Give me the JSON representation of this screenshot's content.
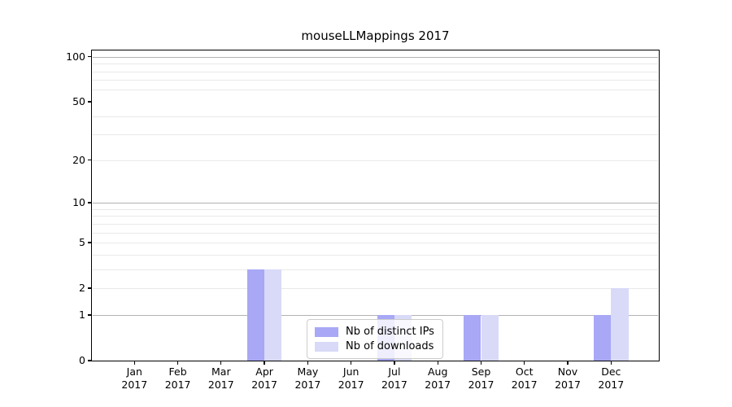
{
  "title": "mouseLLMappings 2017",
  "chart_data": {
    "type": "bar",
    "title": "mouseLLMappings 2017",
    "categories": [
      {
        "month": "Jan",
        "year": "2017"
      },
      {
        "month": "Feb",
        "year": "2017"
      },
      {
        "month": "Mar",
        "year": "2017"
      },
      {
        "month": "Apr",
        "year": "2017"
      },
      {
        "month": "May",
        "year": "2017"
      },
      {
        "month": "Jun",
        "year": "2017"
      },
      {
        "month": "Jul",
        "year": "2017"
      },
      {
        "month": "Aug",
        "year": "2017"
      },
      {
        "month": "Sep",
        "year": "2017"
      },
      {
        "month": "Oct",
        "year": "2017"
      },
      {
        "month": "Nov",
        "year": "2017"
      },
      {
        "month": "Dec",
        "year": "2017"
      }
    ],
    "series": [
      {
        "name": "Nb of distinct IPs",
        "color": "#a8a8f6",
        "values": [
          0,
          0,
          0,
          3,
          0,
          0,
          1,
          0,
          1,
          0,
          0,
          1
        ]
      },
      {
        "name": "Nb of downloads",
        "color": "#d9d9f8",
        "values": [
          0,
          0,
          0,
          3,
          0,
          0,
          1,
          0,
          1,
          0,
          0,
          2
        ]
      }
    ],
    "y_axis": {
      "scale": "log10(value+1)",
      "tick_values": [
        0,
        1,
        2,
        5,
        10,
        20,
        50,
        100
      ],
      "ylim": [
        0,
        110
      ],
      "major_gridlines": [
        1,
        10,
        100
      ],
      "minor_gridlines": [
        2,
        3,
        4,
        5,
        6,
        7,
        8,
        9,
        20,
        30,
        40,
        60,
        70,
        80,
        90
      ]
    },
    "legend_position": "bottom-center",
    "grid": true,
    "colors": {
      "major_grid": "#b2b2b2",
      "minor_grid": "#e9e9e9",
      "spine": "#000000"
    }
  }
}
